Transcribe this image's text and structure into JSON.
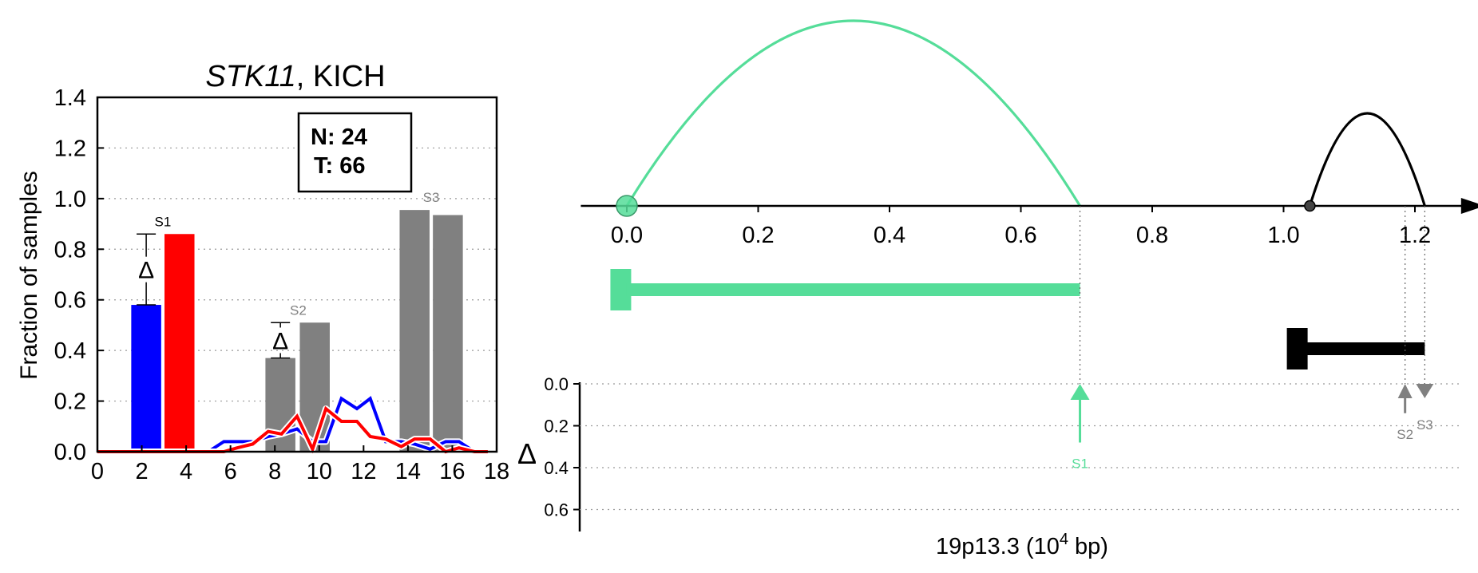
{
  "chart_data": [
    {
      "type": "bar",
      "title_gene": "STK11",
      "title_rest": ", KICH",
      "xlabel": "",
      "ylabel": "Fraction of samples",
      "xlim": [
        0,
        18
      ],
      "ylim": [
        0,
        1.4
      ],
      "x_ticks": [
        "0",
        "2",
        "4",
        "6",
        "8",
        "10",
        "12",
        "14",
        "16",
        "18"
      ],
      "y_ticks": [
        "0.0",
        "0.2",
        "0.4",
        "0.6",
        "0.8",
        "1.0",
        "1.2",
        "1.4"
      ],
      "grid": "horizontal-dotted",
      "info_box": {
        "n_label": "N: 24",
        "t_label": "T: 66"
      },
      "colors": {
        "normal": "#0000ff",
        "tumor": "#ff0000",
        "other": "#808080"
      },
      "bars": [
        {
          "x": 2.2,
          "value": 0.58,
          "color": "#0000ff"
        },
        {
          "x": 3.7,
          "value": 0.86,
          "color": "#ff0000"
        },
        {
          "x": 8.25,
          "value": 0.37,
          "color": "#808080"
        },
        {
          "x": 9.8,
          "value": 0.51,
          "color": "#808080"
        },
        {
          "x": 14.3,
          "value": 0.955,
          "color": "#808080"
        },
        {
          "x": 15.8,
          "value": 0.935,
          "color": "#808080"
        }
      ],
      "bar_width": 1.35,
      "bar_labels": [
        {
          "x": 2.95,
          "value": 0.86,
          "label": "S1",
          "color": "#000000"
        },
        {
          "x": 9.05,
          "value": 0.51,
          "label": "S2",
          "color": "#808080"
        },
        {
          "x": 15.05,
          "value": 0.955,
          "label": "S3",
          "color": "#808080"
        }
      ],
      "delta_markers": [
        {
          "x": 2.2,
          "low": 0.58,
          "high": 0.86,
          "symbol": "Δ"
        },
        {
          "x": 8.25,
          "low": 0.37,
          "high": 0.51,
          "symbol": "Δ"
        }
      ],
      "series": [
        {
          "color": "#0000ff",
          "x": [
            0,
            1,
            2,
            3,
            4,
            5,
            5.7,
            6.3,
            7,
            7.7,
            8.3,
            9,
            9.7,
            10.3,
            11,
            11.7,
            12.3,
            13,
            13.7,
            14.3,
            15,
            15.7,
            16.3,
            17,
            17.6
          ],
          "y": [
            0,
            0,
            0,
            0,
            0,
            0,
            0.04,
            0.04,
            0.04,
            0.06,
            0.07,
            0.09,
            0.04,
            0.04,
            0.21,
            0.17,
            0.21,
            0.04,
            0.04,
            0.03,
            0.01,
            0.04,
            0.04,
            0,
            0
          ]
        },
        {
          "color": "#ff0000",
          "x": [
            0,
            1,
            2,
            3,
            4,
            5,
            5.7,
            6.3,
            7,
            7.7,
            8.3,
            9,
            9.7,
            10.3,
            11,
            11.7,
            12.3,
            13,
            13.7,
            14.3,
            15,
            15.7,
            16.3,
            17,
            17.6
          ],
          "y": [
            0,
            0,
            0,
            0,
            0,
            0,
            0,
            0.015,
            0.03,
            0.08,
            0.07,
            0.14,
            0.01,
            0.17,
            0.12,
            0.12,
            0.06,
            0.05,
            0.02,
            0.05,
            0.05,
            0,
            0.015,
            0,
            0
          ]
        }
      ]
    },
    {
      "type": "diagram",
      "xlabel": "19p13.3 (10",
      "xlabel_sup": "4",
      "xlabel_tail": " bp)",
      "x_ticks": [
        "0.0",
        "0.2",
        "0.4",
        "0.6",
        "0.8",
        "1.0",
        "1.2"
      ],
      "xlim": [
        -0.07,
        1.28
      ],
      "colors": {
        "primary": "#55dd99",
        "secondary": "#000000",
        "muted": "#808080"
      },
      "arcs": [
        {
          "start": 0.0,
          "end": 0.69,
          "height": 1.0,
          "color": "#55dd99"
        },
        {
          "start": 1.04,
          "end": 1.215,
          "height": 0.5,
          "color": "#000000"
        }
      ],
      "endpoints": [
        {
          "x": 0.0,
          "color": "#55dd99",
          "style": "large"
        },
        {
          "x": 1.04,
          "color": "#000000",
          "style": "small"
        }
      ],
      "segments": [
        {
          "start": -0.025,
          "end": 0.69,
          "row": 0,
          "color": "#55dd99"
        },
        {
          "start": 1.005,
          "end": 1.215,
          "row": 1,
          "color": "#000000"
        }
      ],
      "delta_axis_label": "Δ",
      "delta_ticks": [
        "0.0",
        "0.2",
        "0.4",
        "0.6"
      ],
      "delta_ylim": [
        0,
        0.7
      ],
      "delta_markers": [
        {
          "x": 0.69,
          "value": 0.28,
          "label": "S1",
          "direction": "up",
          "color": "#55dd99"
        },
        {
          "x": 1.185,
          "value": 0.14,
          "label": "S2",
          "direction": "up",
          "color": "#808080"
        },
        {
          "x": 1.215,
          "value": 0.02,
          "label": "S3",
          "direction": "down",
          "color": "#808080"
        }
      ]
    }
  ]
}
